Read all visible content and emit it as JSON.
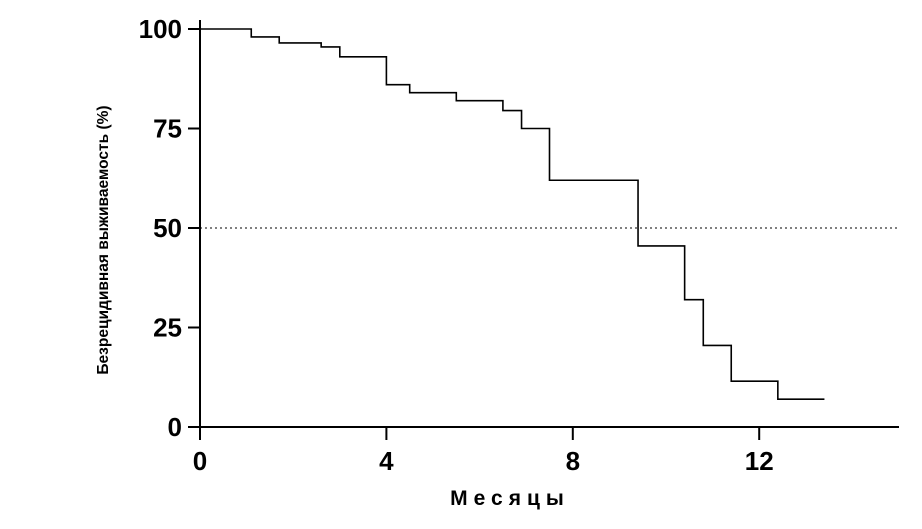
{
  "chart_data": {
    "type": "line",
    "step": true,
    "title": "",
    "xlabel": "Месяцы",
    "ylabel": "Безрецидивная выживаемость (%)",
    "xlim": [
      0,
      15
    ],
    "ylim": [
      0,
      100
    ],
    "xticks": [
      0,
      4,
      8,
      12
    ],
    "yticks": [
      0,
      25,
      50,
      75,
      100
    ],
    "reference_line": {
      "y": 50,
      "style": "dotted"
    },
    "grid": false,
    "series": [
      {
        "x": [
          0,
          1.1,
          1.7,
          2.6,
          3.0,
          4.0,
          4.5,
          5.5,
          6.5,
          6.9,
          7.5,
          9.4,
          10.4,
          10.8,
          11.4,
          12.4,
          13.4
        ],
        "y": [
          100,
          98,
          96.5,
          95.5,
          93,
          86,
          84,
          82,
          79.5,
          75,
          62,
          45.5,
          32,
          20.5,
          11.5,
          7,
          7
        ]
      }
    ]
  }
}
